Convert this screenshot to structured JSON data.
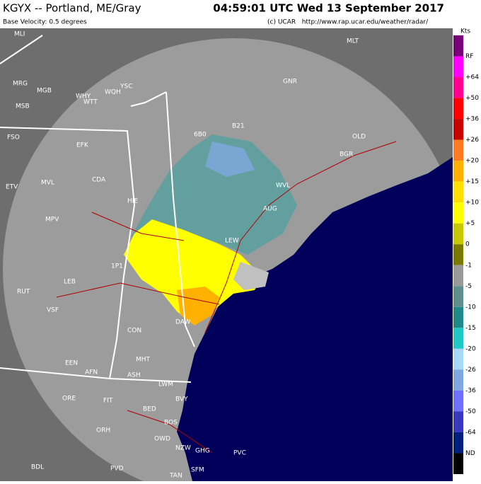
{
  "header": {
    "title": "KGYX -- Portland, ME/Gray",
    "time": "04:59:01 UTC Wed 13 September 2017",
    "subtitle": "Base Velocity: 0.5 degrees",
    "credit": "(c) UCAR   http://www.rap.ucar.edu/weather/radar/"
  },
  "legend": {
    "unit": "Kts",
    "labels": [
      "RF",
      "+64",
      "+50",
      "+36",
      "+26",
      "+20",
      "+15",
      "+10",
      "+5",
      "0",
      "-1",
      "-5",
      "-10",
      "-15",
      "-20",
      "-26",
      "-36",
      "-50",
      "-64",
      "ND"
    ],
    "colors": [
      "#7a007a",
      "#ff00ff",
      "#ff0090",
      "#ff0000",
      "#c80000",
      "#ff7a20",
      "#ffb000",
      "#ffe000",
      "#ffff00",
      "#c8c800",
      "#7a7a00",
      "#9a9a9a",
      "#5e8e8e",
      "#208a8a",
      "#20c8c8",
      "#a8d8f8",
      "#7fa8e0",
      "#7070ff",
      "#3838c0",
      "#002080",
      "#000000"
    ]
  },
  "stations": [
    "MLI",
    "MLT",
    "GNR",
    "MRG",
    "MGB",
    "WHY",
    "WTT",
    "WQH",
    "YSC",
    "MSB",
    "FSO",
    "EFK",
    "6B0",
    "B21",
    "OLD",
    "BGR",
    "MVL",
    "CDA",
    "ETV",
    "WVL",
    "HIE",
    "AUG",
    "MPV",
    "LEW",
    "1P1",
    "LEB",
    "RUT",
    "VSF",
    "CON",
    "DAW",
    "EEN",
    "AFN",
    "ASH",
    "MHT",
    "LWM",
    "ORE",
    "FIT",
    "BED",
    "BVY",
    "ORH",
    "BOS",
    "OWD",
    "NZW",
    "GHG",
    "PVC",
    "BDL",
    "PVD",
    "TAN",
    "SFM"
  ]
}
